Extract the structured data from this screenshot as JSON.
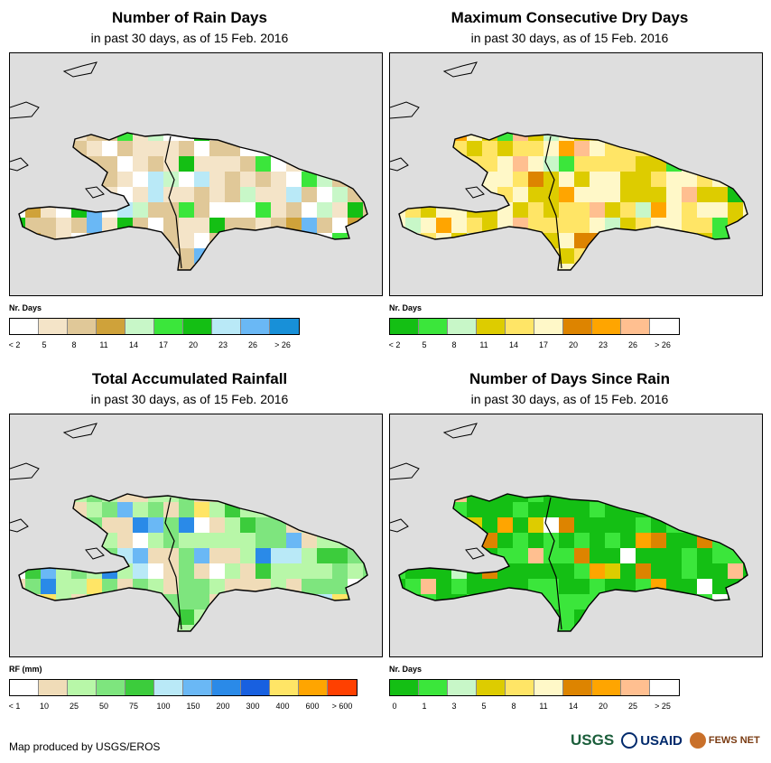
{
  "panels": [
    {
      "id": "rain-days",
      "title": "Number of Rain Days",
      "subtitle": "in past 30 days, as of 15 Feb. 2016",
      "legend_title": "Nr. Days",
      "legend_colors": [
        "#ffffff",
        "#f4e4c8",
        "#e0c898",
        "#cfa23a",
        "#c8f7c8",
        "#3be63b",
        "#14bf14",
        "#b9e9f7",
        "#6ab8f5",
        "#1890d8"
      ],
      "legend_labels": [
        "< 2",
        "5",
        "8",
        "11",
        "14",
        "17",
        "20",
        "23",
        "26",
        "> 26"
      ],
      "label_mode": "boundary",
      "dominant": [
        1,
        2,
        0
      ],
      "accents": [
        3,
        4,
        5,
        6,
        7,
        8
      ]
    },
    {
      "id": "max-dry-days",
      "title": "Maximum Consecutive Dry Days",
      "subtitle": "in past 30 days, as of 15 Feb. 2016",
      "legend_title": "Nr. Days",
      "legend_colors": [
        "#14bf14",
        "#3be63b",
        "#c8f7c8",
        "#ddcc00",
        "#ffe566",
        "#fff8c8",
        "#dd8400",
        "#ffa500",
        "#ffbf90",
        "#ffffff"
      ],
      "legend_labels": [
        "< 2",
        "5",
        "8",
        "11",
        "14",
        "17",
        "20",
        "23",
        "26",
        "> 26"
      ],
      "label_mode": "boundary",
      "dominant": [
        4,
        5,
        3
      ],
      "accents": [
        6,
        7,
        8,
        1,
        2,
        0
      ]
    },
    {
      "id": "total-rainfall",
      "title": "Total Accumulated Rainfall",
      "subtitle": "in past 30 days, as of 15 Feb. 2016",
      "legend_title": "RF (mm)",
      "legend_colors": [
        "#ffffff",
        "#f0dcb8",
        "#b8f7a8",
        "#7ee57e",
        "#3ccc3c",
        "#b9e9f7",
        "#6ab8f5",
        "#2a8ae8",
        "#1860e0",
        "#ffe566",
        "#ffa500",
        "#ff4000"
      ],
      "legend_labels": [
        "< 1",
        "10",
        "25",
        "50",
        "75",
        "100",
        "150",
        "200",
        "300",
        "400",
        "600",
        "> 600"
      ],
      "label_mode": "boundary",
      "dominant": [
        3,
        2,
        1
      ],
      "accents": [
        4,
        5,
        6,
        7,
        9,
        0
      ]
    },
    {
      "id": "days-since-rain",
      "title": "Number of Days Since Rain",
      "subtitle": "in past 30 days, as of 15 Feb. 2016",
      "legend_title": "Nr. Days",
      "legend_colors": [
        "#14bf14",
        "#3be63b",
        "#c8f7c8",
        "#ddcc00",
        "#ffe566",
        "#fff8c8",
        "#dd8400",
        "#ffa500",
        "#ffbf90",
        "#ffffff"
      ],
      "legend_labels": [
        "0",
        "1",
        "3",
        "5",
        "8",
        "11",
        "14",
        "20",
        "25",
        "> 25"
      ],
      "label_mode": "boundary",
      "dominant": [
        0,
        1,
        0
      ],
      "accents": [
        2,
        3,
        6,
        7,
        8,
        9
      ]
    }
  ],
  "footer": {
    "credit": "Map produced by USGS/EROS",
    "logo_usgs": "USGS",
    "logo_usaid": "USAID",
    "logo_fews": "FEWS NET"
  }
}
